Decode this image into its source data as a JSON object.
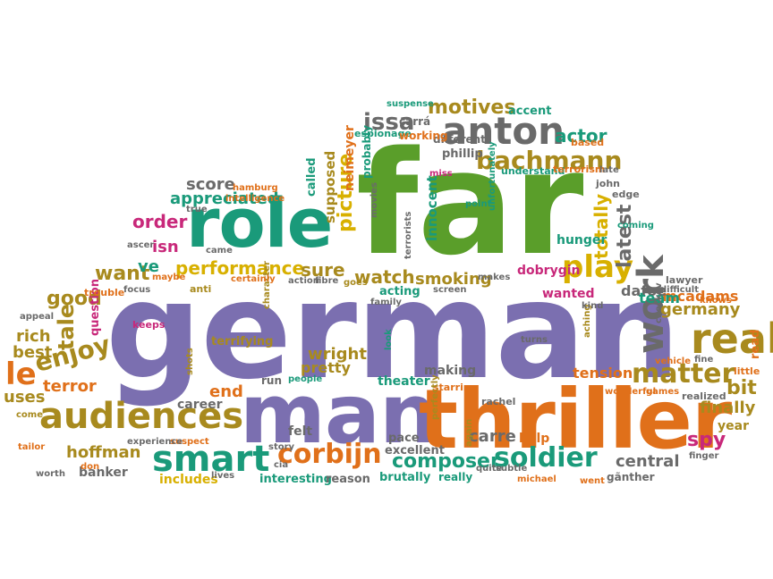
{
  "colors": {
    "purple": "#7b6fb0",
    "green": "#5a9e2a",
    "orange": "#e0701a",
    "olive": "#a88a1e",
    "gold": "#d8b000",
    "teal": "#1a9a7a",
    "magenta": "#c8287a",
    "gray": "#6a6a6a",
    "yellow": "#b8b800"
  },
  "words": [
    {
      "text": "german",
      "color": "purple"
    },
    {
      "text": "far",
      "color": "green"
    },
    {
      "text": "man",
      "color": "purple"
    },
    {
      "text": "thriller",
      "color": "orange"
    },
    {
      "text": "role",
      "color": "teal"
    },
    {
      "text": "anton",
      "color": "gray"
    },
    {
      "text": "bachmann",
      "color": "olive"
    },
    {
      "text": "audiences",
      "color": "olive"
    },
    {
      "text": "smart",
      "color": "teal"
    },
    {
      "text": "real",
      "color": "olive"
    },
    {
      "text": "work",
      "color": "gray"
    },
    {
      "text": "play",
      "color": "gold"
    },
    {
      "text": "matter",
      "color": "olive"
    },
    {
      "text": "soldier",
      "color": "teal"
    },
    {
      "text": "corbijn",
      "color": "orange"
    },
    {
      "text": "composer",
      "color": "teal"
    },
    {
      "text": "le",
      "color": "orange"
    },
    {
      "text": "enjoy",
      "color": "olive"
    },
    {
      "text": "motives",
      "color": "olive"
    },
    {
      "text": "issa",
      "color": "gray"
    },
    {
      "text": "performance",
      "color": "gold"
    },
    {
      "text": "appreciated",
      "color": "teal"
    },
    {
      "text": "score",
      "color": "gray"
    },
    {
      "text": "watch",
      "color": "olive"
    },
    {
      "text": "smoking",
      "color": "olive"
    },
    {
      "text": "sure",
      "color": "olive"
    },
    {
      "text": "order",
      "color": "magenta"
    },
    {
      "text": "want",
      "color": "olive"
    },
    {
      "text": "good",
      "color": "olive"
    },
    {
      "text": "tale",
      "color": "olive"
    },
    {
      "text": "rich",
      "color": "olive"
    },
    {
      "text": "best",
      "color": "olive"
    },
    {
      "text": "hoffman",
      "color": "olive"
    },
    {
      "text": "germany",
      "color": "olive"
    },
    {
      "text": "mcadams",
      "color": "orange"
    },
    {
      "text": "tension",
      "color": "orange"
    },
    {
      "text": "central",
      "color": "gray"
    },
    {
      "text": "spy",
      "color": "magenta"
    },
    {
      "text": "finally",
      "color": "olive"
    },
    {
      "text": "bit",
      "color": "olive"
    },
    {
      "text": "carre",
      "color": "gray"
    },
    {
      "text": "end",
      "color": "orange"
    },
    {
      "text": "wright",
      "color": "olive"
    },
    {
      "text": "pretty",
      "color": "olive"
    },
    {
      "text": "latest",
      "color": "gray"
    },
    {
      "text": "totally",
      "color": "gold"
    },
    {
      "text": "picture",
      "color": "gold"
    },
    {
      "text": "actor",
      "color": "teal"
    },
    {
      "text": "dafoe",
      "color": "gray"
    },
    {
      "text": "team",
      "color": "teal"
    },
    {
      "text": "uses",
      "color": "olive"
    },
    {
      "text": "terror",
      "color": "orange"
    },
    {
      "text": "isn",
      "color": "magenta"
    },
    {
      "text": "ve",
      "color": "teal"
    },
    {
      "text": "dobrygin",
      "color": "magenta"
    },
    {
      "text": "hunger",
      "color": "teal"
    },
    {
      "text": "theater",
      "color": "teal"
    },
    {
      "text": "making",
      "color": "gray"
    },
    {
      "text": "banker",
      "color": "gray"
    },
    {
      "text": "includes",
      "color": "gold"
    },
    {
      "text": "interesting",
      "color": "teal"
    },
    {
      "text": "reason",
      "color": "gray"
    },
    {
      "text": "brutally",
      "color": "teal"
    },
    {
      "text": "really",
      "color": "teal"
    },
    {
      "text": "help",
      "color": "orange"
    },
    {
      "text": "accent",
      "color": "teal"
    },
    {
      "text": "innocent",
      "color": "teal"
    },
    {
      "text": "wanted",
      "color": "magenta"
    },
    {
      "text": "career",
      "color": "gray"
    },
    {
      "text": "felt",
      "color": "gray"
    },
    {
      "text": "pace",
      "color": "gray"
    },
    {
      "text": "excellent",
      "color": "gray"
    },
    {
      "text": "acting",
      "color": "teal"
    },
    {
      "text": "terrifying",
      "color": "olive"
    },
    {
      "text": "phillip",
      "color": "gray"
    },
    {
      "text": "different",
      "color": "gray"
    },
    {
      "text": "supposed",
      "color": "olive"
    },
    {
      "text": "called",
      "color": "teal"
    },
    {
      "text": "neimeyer",
      "color": "orange"
    },
    {
      "text": "probably",
      "color": "teal"
    },
    {
      "text": "espionage",
      "color": "teal"
    },
    {
      "text": "working",
      "color": "orange"
    },
    {
      "text": "carrá",
      "color": "gray"
    },
    {
      "text": "question",
      "color": "magenta"
    },
    {
      "text": "understand",
      "color": "teal"
    },
    {
      "text": "terrorism",
      "color": "orange"
    },
    {
      "text": "john",
      "color": "gray"
    },
    {
      "text": "edge",
      "color": "gray"
    },
    {
      "text": "based",
      "color": "orange"
    },
    {
      "text": "lawyer",
      "color": "gray"
    },
    {
      "text": "knows",
      "color": "orange"
    },
    {
      "text": "read",
      "color": "orange"
    },
    {
      "text": "little",
      "color": "orange"
    },
    {
      "text": "year",
      "color": "olive"
    },
    {
      "text": "realized",
      "color": "gray"
    },
    {
      "text": "finger",
      "color": "gray"
    },
    {
      "text": "gãnther",
      "color": "gray"
    },
    {
      "text": "went",
      "color": "orange"
    },
    {
      "text": "michael",
      "color": "orange"
    },
    {
      "text": "rachel",
      "color": "gray"
    },
    {
      "text": "starring",
      "color": "orange"
    },
    {
      "text": "people",
      "color": "teal"
    },
    {
      "text": "run",
      "color": "gray"
    },
    {
      "text": "anti",
      "color": "olive"
    },
    {
      "text": "trouble",
      "color": "orange"
    },
    {
      "text": "appeal",
      "color": "gray"
    },
    {
      "text": "worth",
      "color": "gray"
    },
    {
      "text": "tailor",
      "color": "orange"
    },
    {
      "text": "don",
      "color": "orange"
    },
    {
      "text": "suspense",
      "color": "teal"
    },
    {
      "text": "keeps",
      "color": "magenta"
    },
    {
      "text": "maybe",
      "color": "orange"
    },
    {
      "text": "focus",
      "color": "gray"
    },
    {
      "text": "came",
      "color": "gray"
    },
    {
      "text": "hamburg",
      "color": "orange"
    },
    {
      "text": "intelligence",
      "color": "orange"
    },
    {
      "text": "true",
      "color": "gray"
    },
    {
      "text": "cia",
      "color": "gray"
    },
    {
      "text": "story",
      "color": "gray"
    },
    {
      "text": "shots",
      "color": "olive"
    },
    {
      "text": "wonderful",
      "color": "orange"
    },
    {
      "text": "games",
      "color": "orange"
    },
    {
      "text": "vehicle",
      "color": "orange"
    },
    {
      "text": "aching",
      "color": "olive"
    },
    {
      "text": "turns",
      "color": "gray"
    },
    {
      "text": "kind",
      "color": "gray"
    },
    {
      "text": "checkov",
      "color": "gray"
    },
    {
      "text": "goes",
      "color": "olive"
    },
    {
      "text": "movies",
      "color": "gray"
    },
    {
      "text": "character",
      "color": "olive"
    },
    {
      "text": "action",
      "color": "gray"
    },
    {
      "text": "fibre",
      "color": "gray"
    },
    {
      "text": "look",
      "color": "teal"
    },
    {
      "text": "perfectly",
      "color": "olive"
    },
    {
      "text": "screen",
      "color": "gray"
    },
    {
      "text": "family",
      "color": "gray"
    },
    {
      "text": "point",
      "color": "teal"
    },
    {
      "text": "unfortunately",
      "color": "teal"
    },
    {
      "text": "coming",
      "color": "teal"
    },
    {
      "text": "miss",
      "color": "magenta"
    },
    {
      "text": "late",
      "color": "gray"
    },
    {
      "text": "makes",
      "color": "gray"
    },
    {
      "text": "terrorists",
      "color": "gray"
    },
    {
      "text": "suspect",
      "color": "orange"
    },
    {
      "text": "experience",
      "color": "gray"
    },
    {
      "text": "come",
      "color": "olive"
    },
    {
      "text": "lives",
      "color": "gray"
    },
    {
      "text": "quite",
      "color": "gray"
    },
    {
      "text": "subtle",
      "color": "gray"
    },
    {
      "text": "certainly",
      "color": "orange"
    },
    {
      "text": "ascer",
      "color": "gray"
    },
    {
      "text": "again",
      "color": "olive"
    },
    {
      "text": "difficult",
      "color": "gray"
    },
    {
      "text": "fine",
      "color": "gray"
    }
  ]
}
